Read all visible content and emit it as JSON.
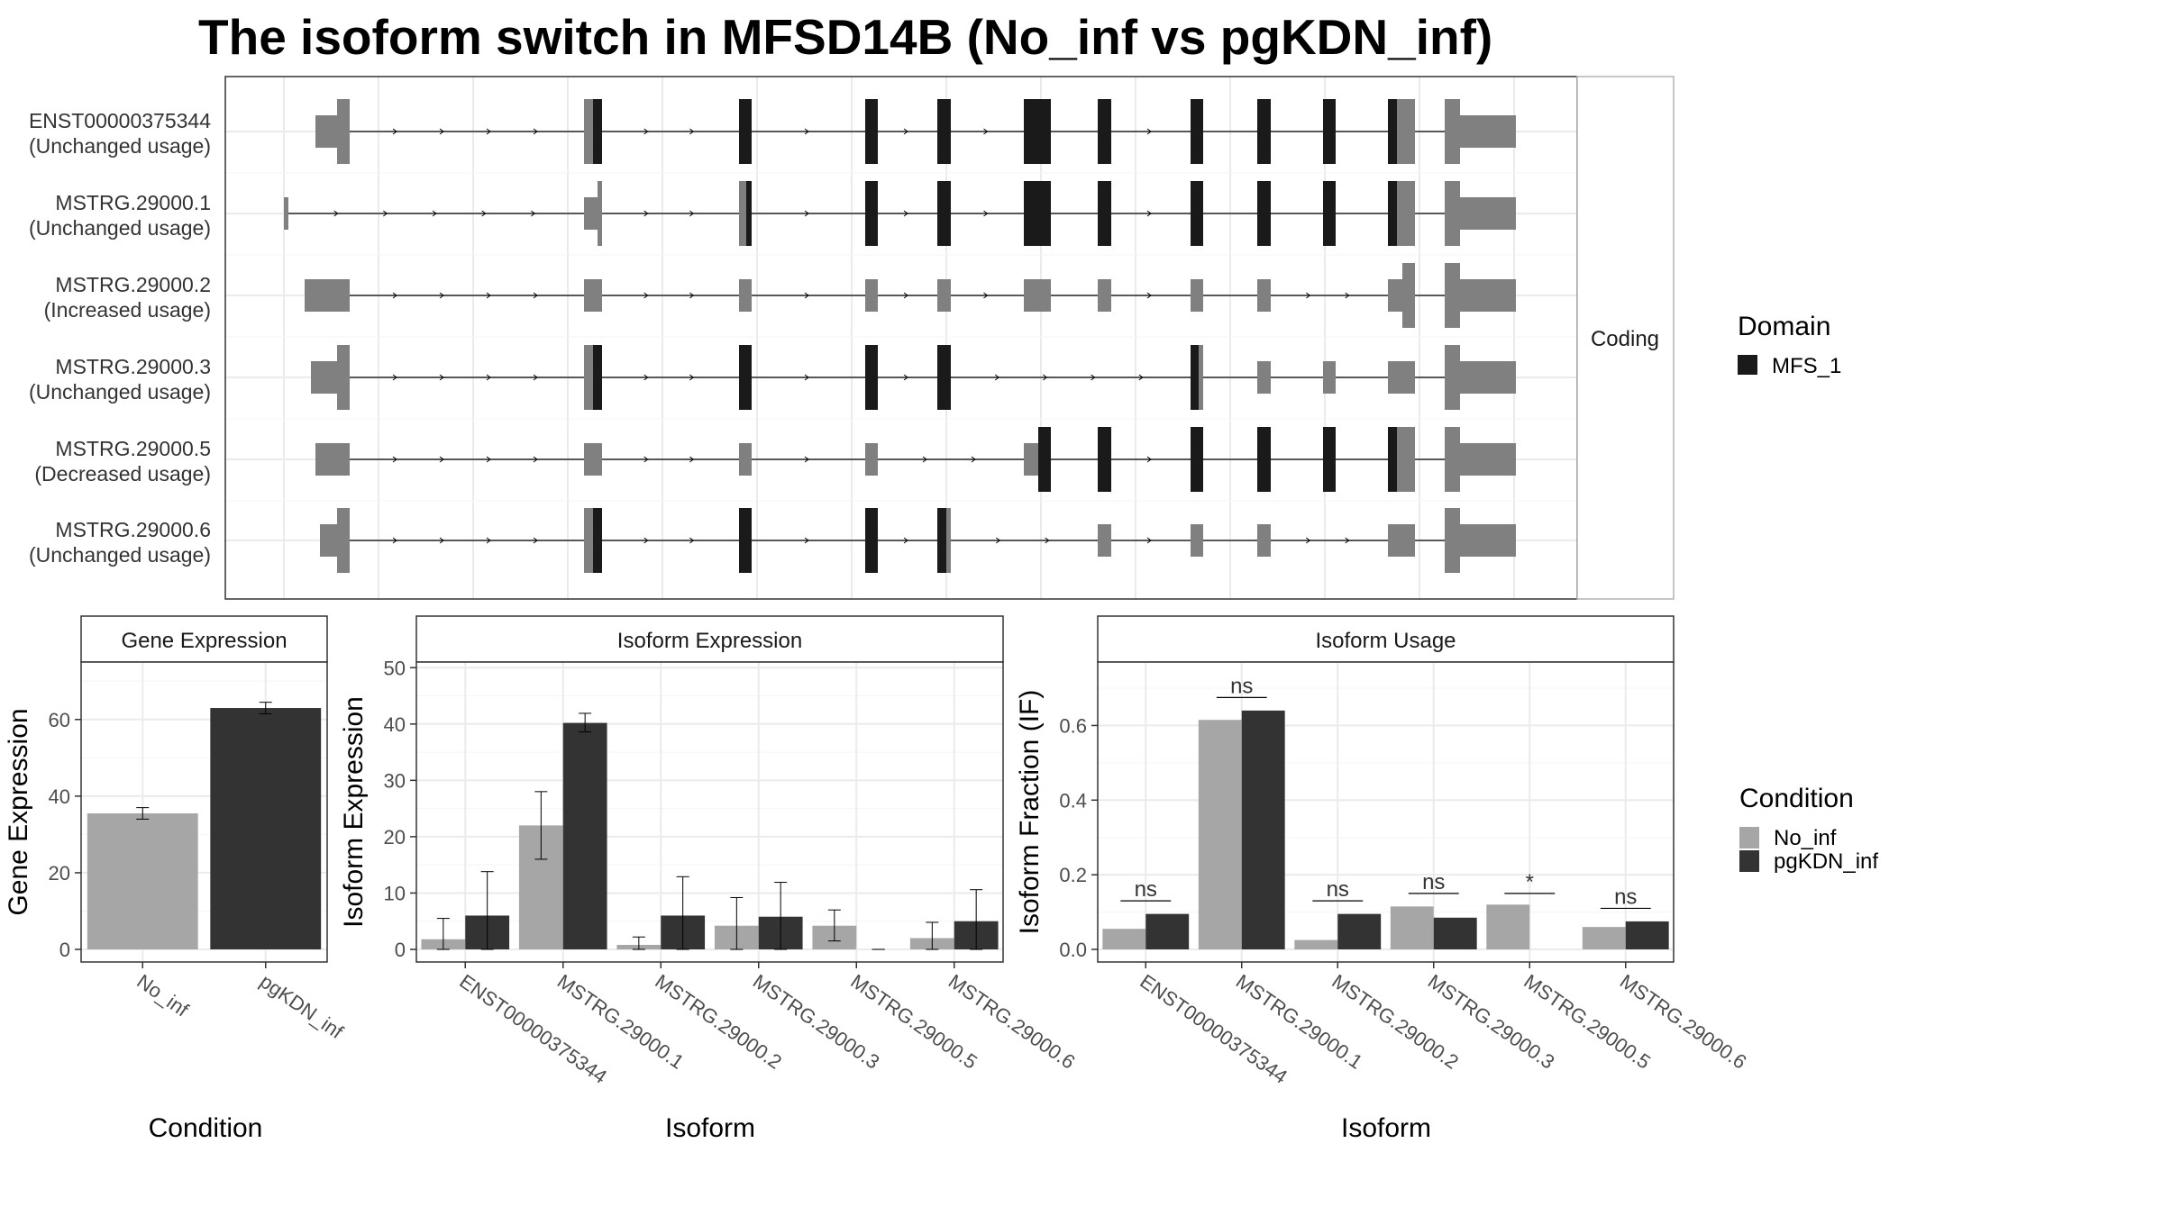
{
  "title": "The isoform switch in MFSD14B (No_inf vs pgKDN_inf)",
  "colors": {
    "utr": "#808080",
    "domain": "#1a1a1a",
    "no_inf": "#a6a6a6",
    "pgkdn_inf": "#333333",
    "grid": "#ebebeb",
    "panel_border": "#333333",
    "strip_fill": "#ffffff"
  },
  "structure": {
    "strip_label": "Coding",
    "isoforms": [
      {
        "id": "ENST00000375344",
        "usage": "(Unchanged usage)"
      },
      {
        "id": "MSTRG.29000.1",
        "usage": "(Unchanged usage)"
      },
      {
        "id": "MSTRG.29000.2",
        "usage": "(Increased usage)"
      },
      {
        "id": "MSTRG.29000.3",
        "usage": "(Unchanged usage)"
      },
      {
        "id": "MSTRG.29000.5",
        "usage": "(Decreased usage)"
      },
      {
        "id": "MSTRG.29000.6",
        "usage": "(Unchanged usage)"
      }
    ]
  },
  "legend_domain": {
    "title": "Domain",
    "items": [
      {
        "label": "MFS_1",
        "color": "#1a1a1a"
      }
    ]
  },
  "legend_condition": {
    "title": "Condition",
    "items": [
      {
        "label": "No_inf",
        "color": "#a6a6a6"
      },
      {
        "label": "pgKDN_inf",
        "color": "#333333"
      }
    ]
  },
  "chart_data": [
    {
      "type": "bar",
      "panel": "Gene Expression",
      "xlabel": "Condition",
      "ylabel": "Gene Expression",
      "ylim": [
        0,
        75
      ],
      "yticks": [
        0,
        20,
        40,
        60
      ],
      "categories": [
        "No_inf",
        "pgKDN_inf"
      ],
      "values": [
        35.5,
        63
      ],
      "error_low": [
        34,
        61.5
      ],
      "error_high": [
        37,
        64.5
      ]
    },
    {
      "type": "bar",
      "panel": "Isoform Expression",
      "xlabel": "Isoform",
      "ylabel": "Isoform Expression",
      "ylim": [
        0,
        51
      ],
      "yticks": [
        0,
        10,
        20,
        30,
        40,
        50
      ],
      "categories": [
        "ENST00000375344",
        "MSTRG.29000.1",
        "MSTRG.29000.2",
        "MSTRG.29000.3",
        "MSTRG.29000.5",
        "MSTRG.29000.6"
      ],
      "series": [
        {
          "name": "No_inf",
          "values": [
            1.8,
            22,
            0.8,
            4.2,
            4.2,
            2
          ],
          "error_low": [
            0,
            16,
            0,
            0,
            1.5,
            0
          ],
          "error_high": [
            5.5,
            28,
            2.2,
            9.2,
            7,
            4.8
          ]
        },
        {
          "name": "pgKDN_inf",
          "values": [
            6,
            40.2,
            6,
            5.8,
            0,
            5
          ],
          "error_low": [
            0,
            38.6,
            0,
            0,
            0,
            0
          ],
          "error_high": [
            13.8,
            41.9,
            12.9,
            11.9,
            0,
            10.6
          ]
        }
      ]
    },
    {
      "type": "bar",
      "panel": "Isoform Usage",
      "xlabel": "Isoform",
      "ylabel": "Isoform Fraction (IF)",
      "ylim": [
        0,
        0.77
      ],
      "yticks": [
        "0.0",
        "0.2",
        "0.4",
        "0.6"
      ],
      "categories": [
        "ENST00000375344",
        "MSTRG.29000.1",
        "MSTRG.29000.2",
        "MSTRG.29000.3",
        "MSTRG.29000.5",
        "MSTRG.29000.6"
      ],
      "series": [
        {
          "name": "No_inf",
          "values": [
            0.055,
            0.615,
            0.025,
            0.115,
            0.12,
            0.06
          ]
        },
        {
          "name": "pgKDN_inf",
          "values": [
            0.095,
            0.64,
            0.095,
            0.085,
            0.0,
            0.075
          ]
        }
      ],
      "significance": [
        "ns",
        "ns",
        "ns",
        "ns",
        "*",
        "ns"
      ],
      "sig_bar_y": [
        0.13,
        0.675,
        0.13,
        0.15,
        0.15,
        0.11
      ]
    }
  ]
}
